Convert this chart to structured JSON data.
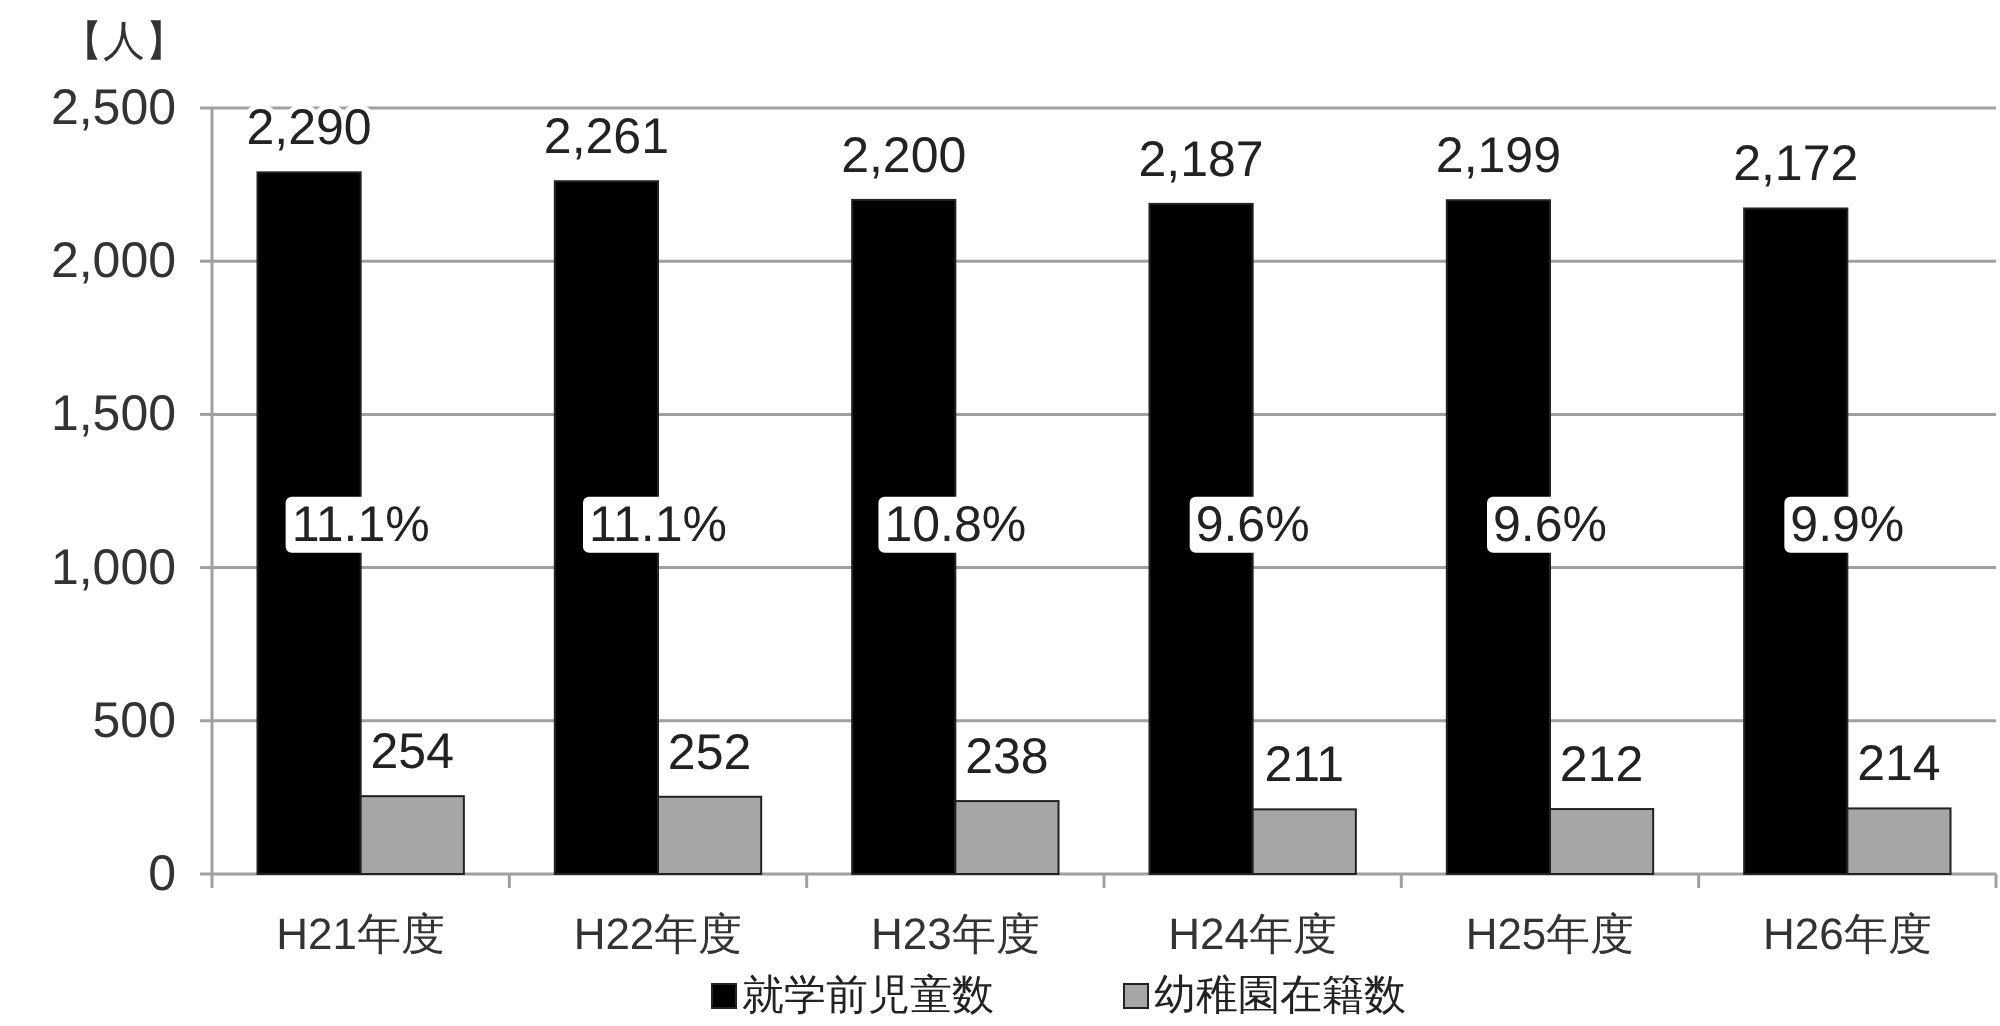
{
  "chart_data": {
    "type": "bar",
    "ylabel": "【人】",
    "categories": [
      "H21年度",
      "H22年度",
      "H23年度",
      "H24年度",
      "H25年度",
      "H26年度"
    ],
    "series": [
      {
        "name": "就学前児童数",
        "color": "#000000",
        "values": [
          2290,
          2261,
          2200,
          2187,
          2199,
          2172
        ],
        "value_labels": [
          "2,290",
          "2,261",
          "2,200",
          "2,187",
          "2,199",
          "2,172"
        ]
      },
      {
        "name": "幼稚園在籍数",
        "color": "#a6a6a6",
        "values": [
          254,
          252,
          238,
          211,
          212,
          214
        ],
        "value_labels": [
          "254",
          "252",
          "238",
          "211",
          "212",
          "214"
        ]
      }
    ],
    "ylim": [
      0,
      2500
    ],
    "yticks": [
      0,
      500,
      {
        "value": 1000,
        "label": "1,000"
      },
      {
        "value": 1500,
        "label": "1,500"
      },
      {
        "value": 2000,
        "label": "2,000"
      },
      {
        "value": 2500,
        "label": "2,500"
      }
    ],
    "grid": "y",
    "legend": "bottom",
    "annotations": [
      {
        "text": "11.1%",
        "x": "H21年度",
        "y": 1140
      },
      {
        "text": "11.1%",
        "x": "H22年度",
        "y": 1140
      },
      {
        "text": "10.8%",
        "x": "H23年度",
        "y": 1140
      },
      {
        "text": "9.6%",
        "x": "H24年度",
        "y": 1140
      },
      {
        "text": "9.6%",
        "x": "H25年度",
        "y": 1140
      },
      {
        "text": "9.9%",
        "x": "H26年度",
        "y": 1140
      }
    ]
  }
}
